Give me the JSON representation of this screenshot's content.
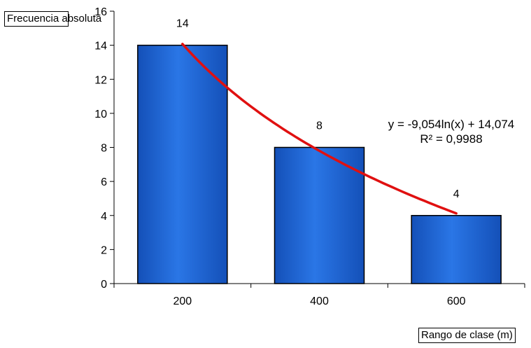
{
  "chart_data": {
    "type": "bar",
    "categories": [
      "200",
      "400",
      "600"
    ],
    "values": [
      14,
      8,
      4
    ],
    "data_labels": [
      "14",
      "8",
      "4"
    ],
    "ylabel": "Frecuencia absoluta",
    "xlabel": "Rango de clase (m)",
    "ylim": [
      0,
      16
    ],
    "yticks": [
      0,
      2,
      4,
      6,
      8,
      10,
      12,
      14,
      16
    ],
    "ytick_labels": [
      "0",
      "2",
      "4",
      "6",
      "8",
      "10",
      "12",
      "14",
      "16"
    ],
    "grid": false,
    "bar_color": "#1c64d6",
    "trendline": {
      "type": "logarithmic",
      "equation": "y = -9,054ln(x) + 14,074",
      "r_squared": "R² = 0,9988",
      "a": -9.054,
      "b": 14.074,
      "color": "#e01010"
    }
  }
}
